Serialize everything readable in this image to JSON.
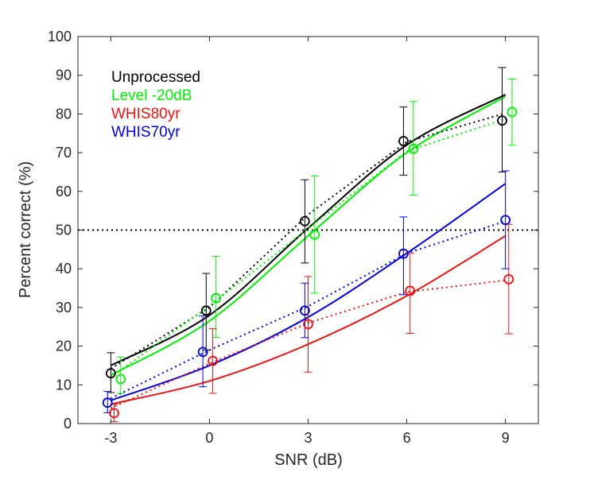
{
  "chart_data": {
    "type": "scatter",
    "title": "",
    "xlabel": "SNR (dB)",
    "ylabel": "Percent correct (%)",
    "xlim": [
      -4,
      10
    ],
    "ylim": [
      0,
      100
    ],
    "xticks": [
      -3,
      0,
      3,
      6,
      9
    ],
    "xtick_labels": [
      "-3",
      "0",
      "3",
      "6",
      "9"
    ],
    "yticks": [
      0,
      10,
      20,
      30,
      40,
      50,
      60,
      70,
      80,
      90,
      100
    ],
    "ytick_labels": [
      "0",
      "10",
      "20",
      "30",
      "40",
      "50",
      "60",
      "70",
      "80",
      "90",
      "100"
    ],
    "reference_line": {
      "y": 50,
      "style": "dotted",
      "color": "#000000"
    },
    "legend": {
      "placement": "top-left",
      "style": "text-only"
    },
    "series": [
      {
        "name": "Unprocessed",
        "color": "#000000",
        "points": [
          {
            "x": -3.0,
            "y": 13.0,
            "err_low": 8.0,
            "err_high": 18.3
          },
          {
            "x": -0.1,
            "y": 29.2,
            "err_low": 19.0,
            "err_high": 38.8
          },
          {
            "x": 2.9,
            "y": 52.3,
            "err_low": 41.5,
            "err_high": 63.0
          },
          {
            "x": 5.9,
            "y": 73.0,
            "err_low": 64.2,
            "err_high": 81.8
          },
          {
            "x": 8.9,
            "y": 78.3,
            "err_low": 65.0,
            "err_high": 92.0
          }
        ],
        "fit": [
          {
            "x": -3,
            "y": 15.0
          },
          {
            "x": 0,
            "y": 28.0
          },
          {
            "x": 3,
            "y": 50.5
          },
          {
            "x": 6,
            "y": 72.0
          },
          {
            "x": 9,
            "y": 85.0
          }
        ],
        "trend": [
          {
            "x": -3,
            "y": 14.2
          },
          {
            "x": 0,
            "y": 30.0
          },
          {
            "x": 3,
            "y": 54.0
          },
          {
            "x": 6,
            "y": 72.8
          },
          {
            "x": 9,
            "y": 80.2
          }
        ]
      },
      {
        "name": "Level -20dB",
        "color": "#00ee00",
        "points": [
          {
            "x": -2.7,
            "y": 11.5,
            "err_low": 7.8,
            "err_high": 17.2
          },
          {
            "x": 0.2,
            "y": 32.4,
            "err_low": 22.3,
            "err_high": 43.2
          },
          {
            "x": 3.2,
            "y": 48.8,
            "err_low": 33.7,
            "err_high": 64.0
          },
          {
            "x": 6.2,
            "y": 71.0,
            "err_low": 59.0,
            "err_high": 83.2
          },
          {
            "x": 9.2,
            "y": 80.5,
            "err_low": 71.9,
            "err_high": 89.0
          }
        ],
        "fit": [
          {
            "x": -3,
            "y": 12.5
          },
          {
            "x": 0,
            "y": 26.5
          },
          {
            "x": 3,
            "y": 48.5
          },
          {
            "x": 6,
            "y": 70.0
          },
          {
            "x": 9,
            "y": 84.5
          }
        ],
        "trend": [
          {
            "x": -3,
            "y": 12.0
          },
          {
            "x": 0,
            "y": 30.4
          },
          {
            "x": 3,
            "y": 50.4
          },
          {
            "x": 6,
            "y": 70.4
          },
          {
            "x": 9,
            "y": 78.7
          }
        ]
      },
      {
        "name": "WHIS80yr",
        "color": "#ee1111",
        "points": [
          {
            "x": -2.9,
            "y": 2.7,
            "err_low": 0.5,
            "err_high": 5.0
          },
          {
            "x": 0.1,
            "y": 16.2,
            "err_low": 7.8,
            "err_high": 24.5
          },
          {
            "x": 3.0,
            "y": 25.7,
            "err_low": 13.3,
            "err_high": 38.0
          },
          {
            "x": 6.1,
            "y": 34.3,
            "err_low": 23.3,
            "err_high": 44.0
          },
          {
            "x": 9.1,
            "y": 37.3,
            "err_low": 23.2,
            "err_high": 51.5
          }
        ],
        "fit": [
          {
            "x": -3,
            "y": 5.0
          },
          {
            "x": 0,
            "y": 11.0
          },
          {
            "x": 3,
            "y": 20.5
          },
          {
            "x": 6,
            "y": 33.0
          },
          {
            "x": 9,
            "y": 48.5
          }
        ],
        "trend": [
          {
            "x": -3,
            "y": 4.0
          },
          {
            "x": 0,
            "y": 15.5
          },
          {
            "x": 3,
            "y": 26.0
          },
          {
            "x": 6,
            "y": 34.0
          },
          {
            "x": 9,
            "y": 37.0
          }
        ]
      },
      {
        "name": "WHIS70yr",
        "color": "#0000dd",
        "points": [
          {
            "x": -3.1,
            "y": 5.4,
            "err_low": 2.8,
            "err_high": 8.3
          },
          {
            "x": -0.2,
            "y": 18.5,
            "err_low": 9.5,
            "err_high": 27.8
          },
          {
            "x": 2.9,
            "y": 29.2,
            "err_low": 22.2,
            "err_high": 36.3
          },
          {
            "x": 5.9,
            "y": 43.9,
            "err_low": 33.3,
            "err_high": 53.4
          },
          {
            "x": 9.0,
            "y": 52.6,
            "err_low": 40.0,
            "err_high": 65.3
          }
        ],
        "fit": [
          {
            "x": -3,
            "y": 6.0
          },
          {
            "x": 0,
            "y": 15.0
          },
          {
            "x": 3,
            "y": 27.5
          },
          {
            "x": 6,
            "y": 44.0
          },
          {
            "x": 9,
            "y": 62.0
          }
        ],
        "trend": [
          {
            "x": -3,
            "y": 6.5
          },
          {
            "x": 0,
            "y": 19.0
          },
          {
            "x": 3,
            "y": 30.3
          },
          {
            "x": 6,
            "y": 44.0
          },
          {
            "x": 9,
            "y": 52.3
          }
        ]
      }
    ]
  }
}
